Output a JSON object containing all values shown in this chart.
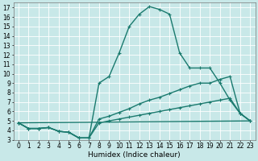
{
  "xlabel": "Humidex (Indice chaleur)",
  "bg_color": "#c8e8e8",
  "grid_color": "#ffffff",
  "line_color": "#1a7a6e",
  "xlim": [
    -0.5,
    23.5
  ],
  "ylim": [
    3,
    17.5
  ],
  "xticks": [
    0,
    1,
    2,
    3,
    4,
    5,
    6,
    7,
    8,
    9,
    10,
    11,
    12,
    13,
    14,
    15,
    16,
    17,
    18,
    19,
    20,
    21,
    22,
    23
  ],
  "yticks": [
    3,
    4,
    5,
    6,
    7,
    8,
    9,
    10,
    11,
    12,
    13,
    14,
    15,
    16,
    17
  ],
  "line1_x": [
    0,
    1,
    2,
    3,
    4,
    5,
    6,
    7,
    8,
    9,
    10,
    11,
    12,
    13,
    14,
    15,
    16,
    17,
    18,
    19,
    20,
    21,
    22,
    23
  ],
  "line1_y": [
    4.8,
    4.2,
    4.2,
    4.3,
    3.9,
    3.8,
    3.2,
    3.2,
    9.0,
    9.7,
    12.2,
    15.0,
    16.3,
    17.1,
    16.8,
    16.3,
    12.2,
    10.6,
    10.6,
    10.6,
    9.0,
    7.2,
    5.8,
    5.0
  ],
  "line2_x": [
    0,
    1,
    2,
    3,
    4,
    5,
    6,
    7,
    8,
    9,
    10,
    11,
    12,
    13,
    14,
    15,
    16,
    17,
    18,
    19,
    20,
    21,
    22,
    23
  ],
  "line2_y": [
    4.8,
    4.2,
    4.2,
    4.3,
    3.9,
    3.8,
    3.2,
    3.2,
    5.2,
    5.5,
    5.9,
    6.3,
    6.8,
    7.2,
    7.5,
    7.9,
    8.3,
    8.7,
    9.0,
    9.0,
    9.4,
    9.7,
    5.8,
    5.0
  ],
  "line3_x": [
    0,
    1,
    2,
    3,
    4,
    5,
    6,
    7,
    8,
    9,
    10,
    11,
    12,
    13,
    14,
    15,
    16,
    17,
    18,
    19,
    20,
    21,
    22,
    23
  ],
  "line3_y": [
    4.8,
    4.2,
    4.2,
    4.3,
    3.9,
    3.8,
    3.2,
    3.2,
    4.8,
    5.0,
    5.2,
    5.4,
    5.6,
    5.8,
    6.0,
    6.2,
    6.4,
    6.6,
    6.8,
    7.0,
    7.2,
    7.4,
    5.8,
    5.0
  ],
  "line4_x": [
    0,
    23
  ],
  "line4_y": [
    4.8,
    5.0
  ],
  "linewidth": 1.0,
  "markersize": 3,
  "tick_fontsize": 5.5,
  "label_fontsize": 6.5
}
